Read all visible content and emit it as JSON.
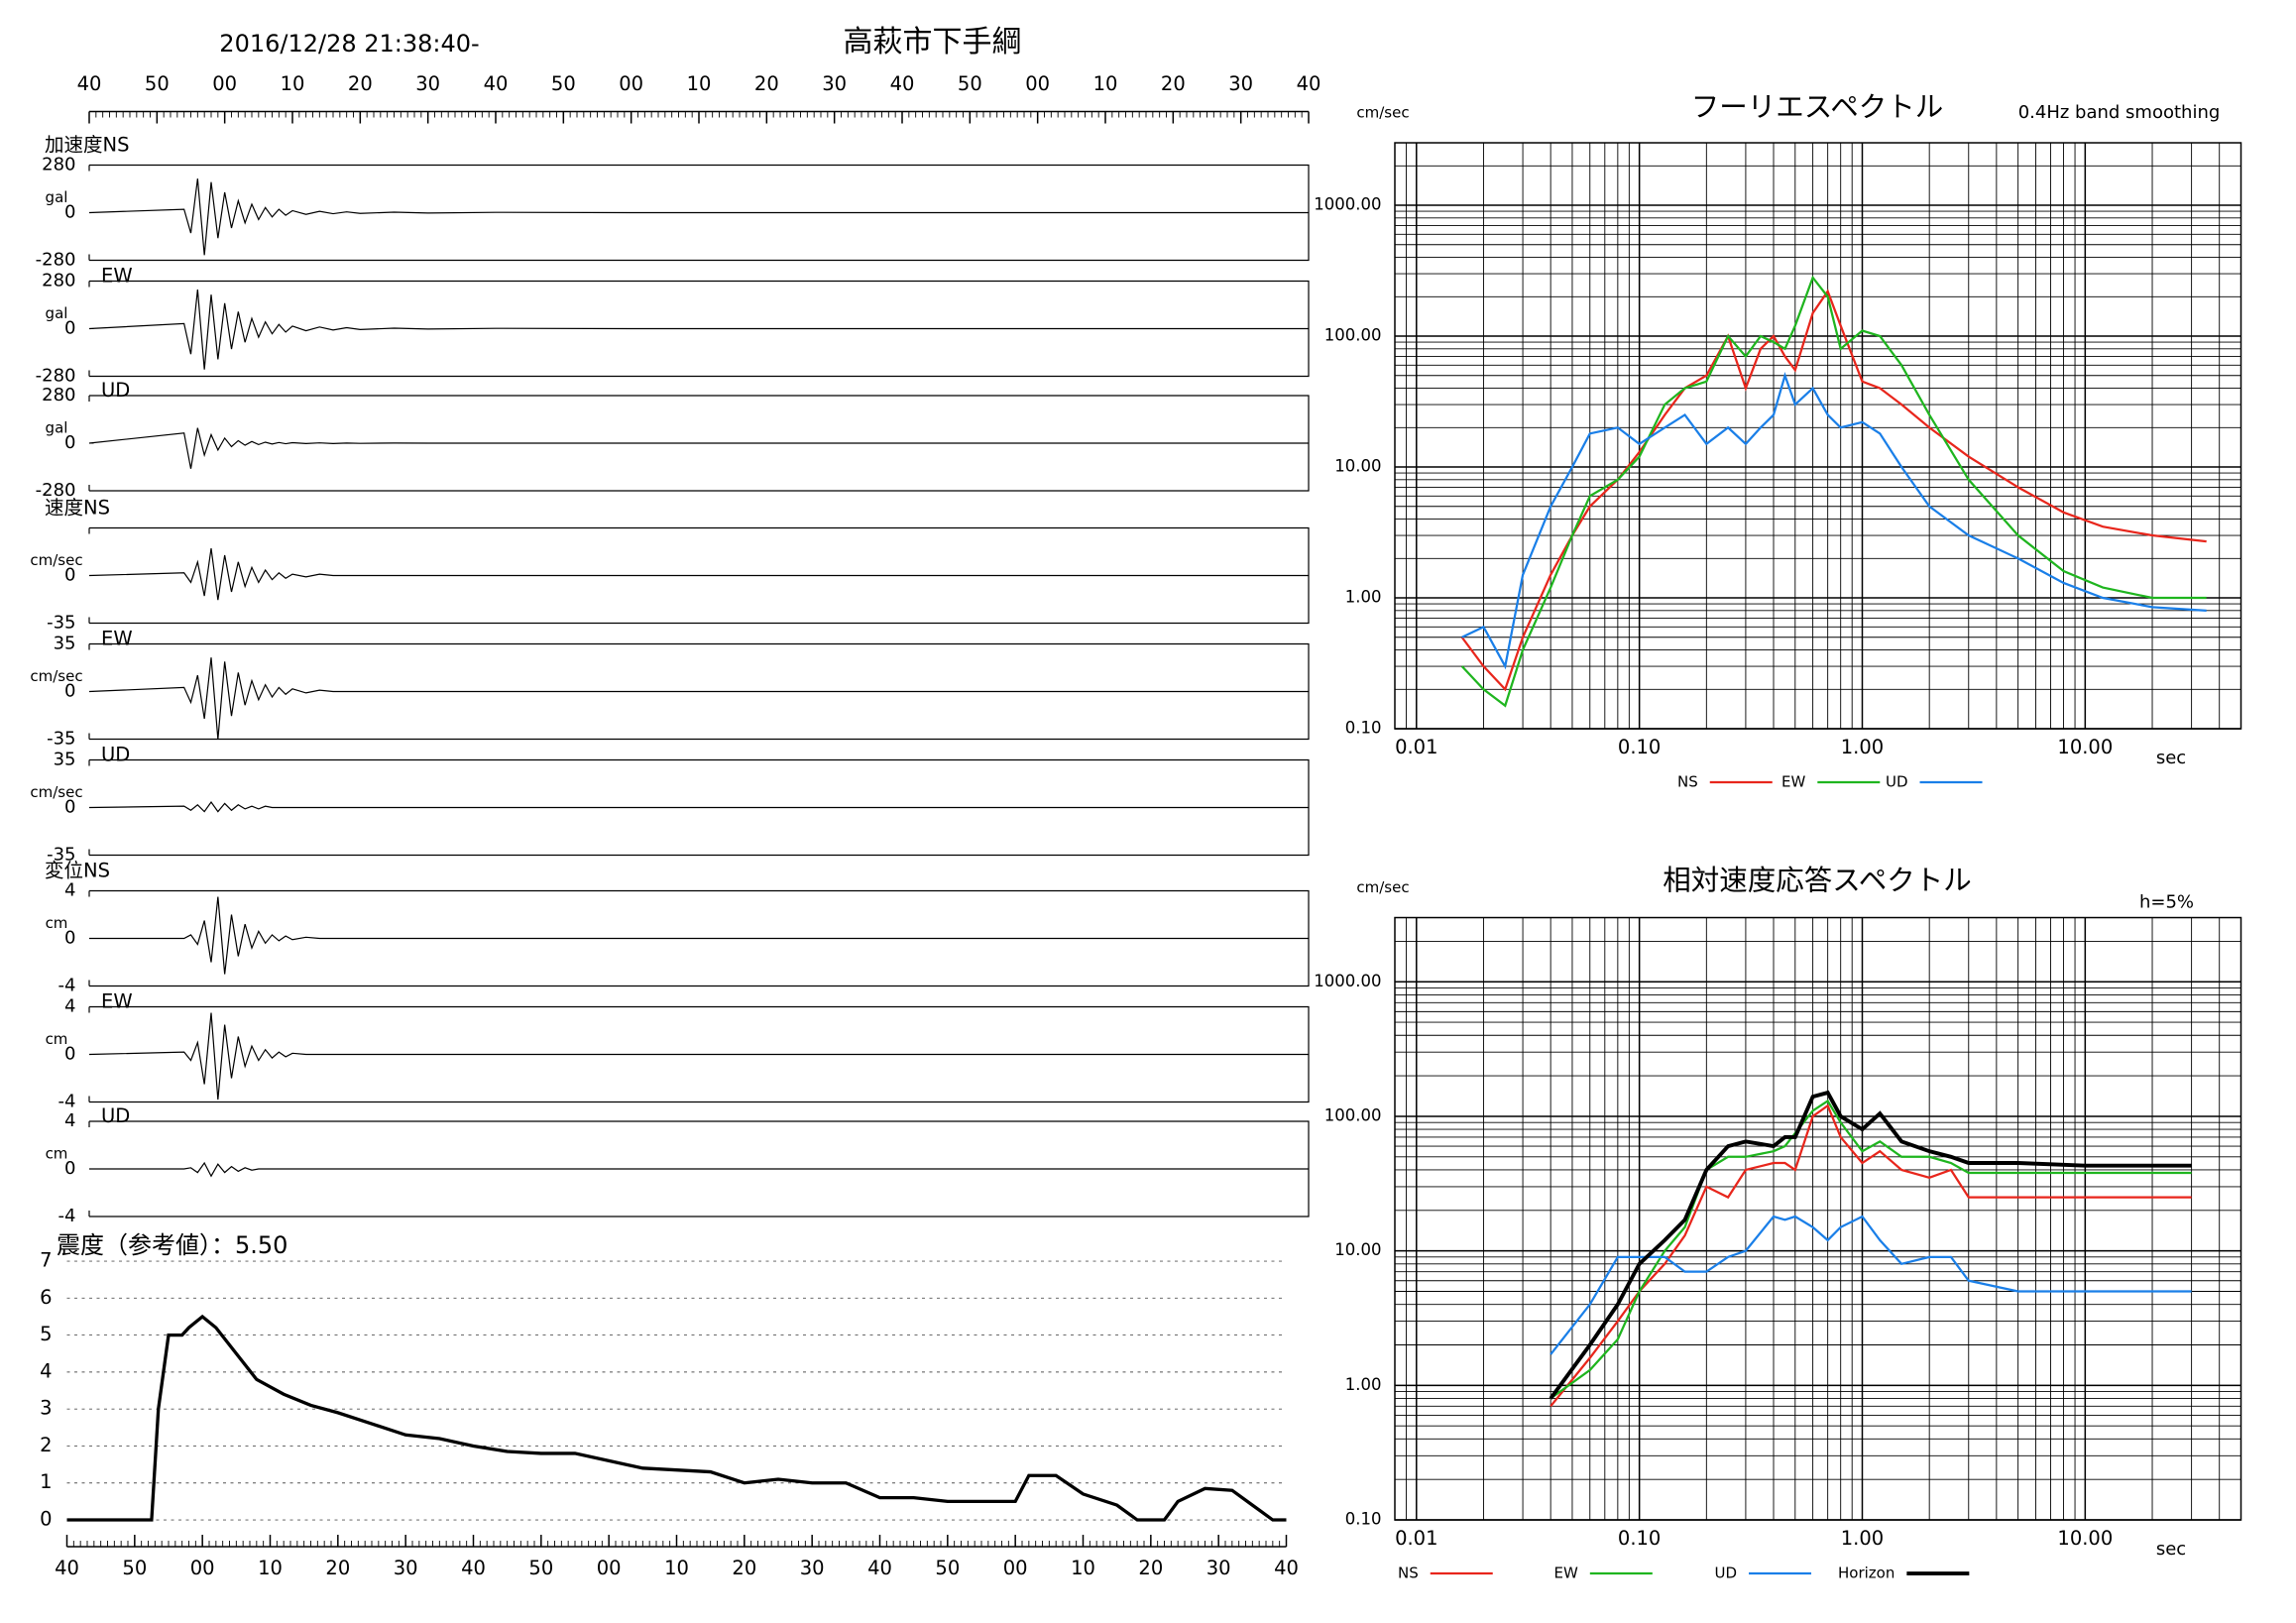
{
  "header": {
    "datetime": "2016/12/28 21:38:40-",
    "station": "高萩市下手綱"
  },
  "chart_data": [
    {
      "type": "waveform",
      "label": "加速度NS",
      "unit": "gal",
      "ylim": [
        -280,
        280
      ],
      "yticks": [
        -280,
        0,
        280
      ],
      "xlim": [
        0,
        180
      ],
      "xticks": [
        {
          "value": 0,
          "label": "40"
        },
        {
          "value": 10,
          "label": "50"
        },
        {
          "value": 20,
          "label": "00"
        },
        {
          "value": 30,
          "label": "10"
        },
        {
          "value": 40,
          "label": "20"
        },
        {
          "value": 50,
          "label": "30"
        },
        {
          "value": 60,
          "label": "40"
        },
        {
          "value": 70,
          "label": "50"
        },
        {
          "value": 80,
          "label": "00"
        },
        {
          "value": 90,
          "label": "10"
        },
        {
          "value": 100,
          "label": "20"
        },
        {
          "value": 110,
          "label": "30"
        },
        {
          "value": 120,
          "label": "40"
        },
        {
          "value": 130,
          "label": "50"
        },
        {
          "value": 140,
          "label": "00"
        },
        {
          "value": 150,
          "label": "10"
        },
        {
          "value": 160,
          "label": "20"
        },
        {
          "value": 170,
          "label": "30"
        },
        {
          "value": 180,
          "label": "40"
        }
      ],
      "x": [
        0,
        14,
        15,
        16,
        17,
        18,
        19,
        20,
        21,
        22,
        23,
        24,
        25,
        26,
        27,
        28,
        29,
        30,
        32,
        34,
        36,
        38,
        40,
        45,
        50,
        60,
        80,
        120,
        180
      ],
      "values": [
        0,
        20,
        -120,
        200,
        -250,
        180,
        -150,
        120,
        -90,
        70,
        -60,
        50,
        -40,
        30,
        -25,
        20,
        -15,
        12,
        -10,
        8,
        -6,
        5,
        -4,
        3,
        -2,
        2,
        0,
        0,
        0
      ]
    },
    {
      "type": "waveform",
      "label": "EW",
      "unit": "gal",
      "ylim": [
        -280,
        280
      ],
      "yticks": [
        -280,
        0,
        280
      ],
      "xlim": [
        0,
        180
      ],
      "x": [
        0,
        14,
        15,
        16,
        17,
        18,
        19,
        20,
        21,
        22,
        23,
        24,
        25,
        26,
        27,
        28,
        29,
        30,
        32,
        34,
        36,
        38,
        40,
        45,
        50,
        60,
        80,
        120,
        180
      ],
      "values": [
        0,
        30,
        -150,
        230,
        -240,
        200,
        -180,
        150,
        -120,
        100,
        -80,
        60,
        -50,
        40,
        -30,
        25,
        -20,
        15,
        -12,
        10,
        -8,
        6,
        -5,
        3,
        -2,
        2,
        0,
        0,
        0
      ]
    },
    {
      "type": "waveform",
      "label": "UD",
      "unit": "gal",
      "ylim": [
        -280,
        280
      ],
      "yticks": [
        -280,
        0,
        280
      ],
      "xlim": [
        0,
        180
      ],
      "x": [
        0,
        14,
        15,
        16,
        17,
        18,
        19,
        20,
        21,
        22,
        23,
        24,
        25,
        26,
        27,
        28,
        29,
        30,
        32,
        34,
        36,
        38,
        40,
        45,
        50,
        60,
        80,
        120,
        180
      ],
      "values": [
        0,
        60,
        -150,
        90,
        -70,
        50,
        -40,
        30,
        -20,
        15,
        -12,
        10,
        -8,
        6,
        -5,
        4,
        -3,
        3,
        -2,
        2,
        -2,
        1,
        -1,
        1,
        0,
        0,
        0,
        0,
        0
      ]
    },
    {
      "type": "waveform",
      "label": "速度NS",
      "unit": "cm/sec",
      "ylim": [
        -35,
        35
      ],
      "yticks": [
        -35,
        0
      ],
      "xlim": [
        0,
        180
      ],
      "x": [
        0,
        14,
        15,
        16,
        17,
        18,
        19,
        20,
        21,
        22,
        23,
        24,
        25,
        26,
        27,
        28,
        29,
        30,
        32,
        34,
        36,
        38,
        40,
        45,
        50,
        60,
        80,
        120,
        180
      ],
      "values": [
        0,
        2,
        -5,
        10,
        -15,
        20,
        -18,
        15,
        -12,
        10,
        -8,
        6,
        -5,
        4,
        -3,
        2,
        -2,
        1,
        -1,
        1,
        0,
        0,
        0,
        0,
        0,
        0,
        0,
        0,
        0
      ]
    },
    {
      "type": "waveform",
      "label": "EW",
      "unit": "cm/sec",
      "ylim": [
        -35,
        35
      ],
      "yticks": [
        -35,
        0,
        35
      ],
      "xlim": [
        0,
        180
      ],
      "x": [
        0,
        14,
        15,
        16,
        17,
        18,
        19,
        20,
        21,
        22,
        23,
        24,
        25,
        26,
        27,
        28,
        29,
        30,
        32,
        34,
        36,
        38,
        40,
        45,
        50,
        60,
        80,
        120,
        180
      ],
      "values": [
        0,
        3,
        -8,
        12,
        -20,
        25,
        -35,
        22,
        -18,
        14,
        -10,
        8,
        -6,
        5,
        -4,
        3,
        -2,
        2,
        -1,
        1,
        0,
        0,
        0,
        0,
        0,
        0,
        0,
        0,
        0
      ]
    },
    {
      "type": "waveform",
      "label": "UD",
      "unit": "cm/sec",
      "ylim": [
        -35,
        35
      ],
      "yticks": [
        -35,
        0,
        35
      ],
      "xlim": [
        0,
        180
      ],
      "x": [
        0,
        14,
        15,
        16,
        17,
        18,
        19,
        20,
        21,
        22,
        23,
        24,
        25,
        26,
        27,
        28,
        29,
        30,
        32,
        34,
        36,
        38,
        40,
        45,
        50,
        60,
        80,
        120,
        180
      ],
      "values": [
        0,
        1,
        -2,
        2,
        -3,
        4,
        -3,
        3,
        -2,
        2,
        -1,
        1,
        -1,
        1,
        0,
        0,
        0,
        0,
        0,
        0,
        0,
        0,
        0,
        0,
        0,
        0,
        0,
        0,
        0
      ]
    },
    {
      "type": "waveform",
      "label": "変位NS",
      "unit": "cm",
      "ylim": [
        -4,
        4
      ],
      "yticks": [
        -4,
        0,
        4
      ],
      "xlim": [
        0,
        180
      ],
      "x": [
        0,
        14,
        15,
        16,
        17,
        18,
        19,
        20,
        21,
        22,
        23,
        24,
        25,
        26,
        27,
        28,
        29,
        30,
        32,
        34,
        36,
        38,
        40,
        45,
        50,
        60,
        80,
        120,
        180
      ],
      "values": [
        0,
        0,
        0.3,
        -0.5,
        1.5,
        -2,
        3.5,
        -3,
        2,
        -1.5,
        1.2,
        -0.8,
        0.6,
        -0.4,
        0.3,
        -0.2,
        0.2,
        -0.1,
        0.1,
        0,
        0,
        0,
        0,
        0,
        0,
        0,
        0,
        0,
        0
      ]
    },
    {
      "type": "waveform",
      "label": "EW",
      "unit": "cm",
      "ylim": [
        -4,
        4
      ],
      "yticks": [
        -4,
        0,
        4
      ],
      "xlim": [
        0,
        180
      ],
      "x": [
        0,
        14,
        15,
        16,
        17,
        18,
        19,
        20,
        21,
        22,
        23,
        24,
        25,
        26,
        27,
        28,
        29,
        30,
        32,
        34,
        36,
        38,
        40,
        45,
        50,
        60,
        80,
        120,
        180
      ],
      "values": [
        0,
        0.2,
        -0.5,
        1,
        -2.5,
        3.5,
        -3.8,
        2.5,
        -2,
        1.5,
        -1,
        0.7,
        -0.5,
        0.4,
        -0.3,
        0.2,
        -0.2,
        0.1,
        0,
        0,
        0,
        0,
        0,
        0,
        0,
        0,
        0,
        0,
        0
      ]
    },
    {
      "type": "waveform",
      "label": "UD",
      "unit": "cm",
      "ylim": [
        -4,
        4
      ],
      "yticks": [
        -4,
        0,
        4
      ],
      "xlim": [
        0,
        180
      ],
      "x": [
        0,
        14,
        15,
        16,
        17,
        18,
        19,
        20,
        21,
        22,
        23,
        24,
        25,
        26,
        27,
        28,
        29,
        30,
        32,
        34,
        36,
        38,
        40,
        45,
        50,
        60,
        80,
        120,
        180
      ],
      "values": [
        0,
        0,
        0.1,
        -0.3,
        0.5,
        -0.6,
        0.4,
        -0.3,
        0.2,
        -0.2,
        0.1,
        -0.1,
        0,
        0,
        0,
        0,
        0,
        0,
        0,
        0,
        0,
        0,
        0,
        0,
        0,
        0,
        0,
        0,
        0
      ]
    },
    {
      "type": "line",
      "title": "震度（参考値）：5.50",
      "color": "#000000",
      "grid": true,
      "ylim": [
        0,
        7
      ],
      "yticks": [
        0,
        1,
        2,
        3,
        4,
        5,
        6,
        7
      ],
      "xlim": [
        0,
        180
      ],
      "xticks": [
        {
          "value": 0,
          "label": "40"
        },
        {
          "value": 10,
          "label": "50"
        },
        {
          "value": 20,
          "label": "00"
        },
        {
          "value": 30,
          "label": "10"
        },
        {
          "value": 40,
          "label": "20"
        },
        {
          "value": 50,
          "label": "30"
        },
        {
          "value": 60,
          "label": "40"
        },
        {
          "value": 70,
          "label": "50"
        },
        {
          "value": 80,
          "label": "00"
        },
        {
          "value": 90,
          "label": "10"
        },
        {
          "value": 100,
          "label": "20"
        },
        {
          "value": 110,
          "label": "30"
        },
        {
          "value": 120,
          "label": "40"
        },
        {
          "value": 130,
          "label": "50"
        },
        {
          "value": 140,
          "label": "00"
        },
        {
          "value": 150,
          "label": "10"
        },
        {
          "value": 160,
          "label": "20"
        },
        {
          "value": 170,
          "label": "30"
        },
        {
          "value": 180,
          "label": "40"
        }
      ],
      "x": [
        0,
        12.5,
        13.5,
        15,
        17,
        18,
        20,
        22,
        25,
        28,
        32,
        36,
        40,
        45,
        50,
        55,
        60,
        65,
        70,
        75,
        80,
        85,
        90,
        95,
        100,
        105,
        110,
        115,
        120,
        125,
        130,
        135,
        140,
        142,
        146,
        150,
        155,
        158,
        162,
        164,
        168,
        172,
        175,
        178,
        180
      ],
      "values": [
        0,
        0,
        3,
        5,
        5,
        5.2,
        5.5,
        5.2,
        4.5,
        3.8,
        3.4,
        3.1,
        2.9,
        2.6,
        2.3,
        2.2,
        2.0,
        1.85,
        1.8,
        1.8,
        1.6,
        1.4,
        1.35,
        1.3,
        1.0,
        1.1,
        1.0,
        1.0,
        0.6,
        0.6,
        0.5,
        0.5,
        0.5,
        1.2,
        1.2,
        0.7,
        0.4,
        0,
        0,
        0.5,
        0.85,
        0.8,
        0.4,
        0,
        0
      ]
    },
    {
      "type": "loglog",
      "title": "フーリエスペクトル",
      "subtitle": "0.4Hz band smoothing",
      "y_unit": "cm/sec",
      "x_unit": "sec",
      "grid": true,
      "xlim": [
        0.008,
        50
      ],
      "ylim": [
        0.1,
        3000
      ],
      "xticks": [
        {
          "value": 0.01,
          "label": "0.01"
        },
        {
          "value": 0.1,
          "label": "0.10"
        },
        {
          "value": 1,
          "label": "1.00"
        },
        {
          "value": 10,
          "label": "10.00"
        }
      ],
      "yticks": [
        {
          "value": 0.1,
          "label": "0.10"
        },
        {
          "value": 1,
          "label": "1.00"
        },
        {
          "value": 10,
          "label": "10.00"
        },
        {
          "value": 100,
          "label": "100.00"
        },
        {
          "value": 1000,
          "label": "1000.00"
        }
      ],
      "x": [
        0.016,
        0.02,
        0.025,
        0.03,
        0.04,
        0.05,
        0.06,
        0.08,
        0.1,
        0.13,
        0.16,
        0.2,
        0.25,
        0.3,
        0.35,
        0.4,
        0.45,
        0.5,
        0.6,
        0.7,
        0.8,
        1.0,
        1.2,
        1.5,
        2,
        3,
        5,
        8,
        12,
        20,
        35
      ],
      "series": [
        {
          "name": "NS",
          "color": "#e8261c",
          "values": [
            0.5,
            0.3,
            0.2,
            0.5,
            1.5,
            3,
            5,
            8,
            13,
            25,
            40,
            50,
            100,
            40,
            80,
            100,
            70,
            55,
            150,
            220,
            120,
            45,
            40,
            30,
            20,
            12,
            7,
            4.5,
            3.5,
            3,
            2.7
          ]
        },
        {
          "name": "EW",
          "color": "#1fb51f",
          "values": [
            0.3,
            0.2,
            0.15,
            0.4,
            1.2,
            3,
            6,
            8,
            12,
            30,
            40,
            45,
            100,
            70,
            100,
            90,
            80,
            120,
            280,
            200,
            80,
            110,
            100,
            60,
            25,
            8,
            3,
            1.6,
            1.2,
            1.0,
            1.0
          ]
        },
        {
          "name": "UD",
          "color": "#1a7fe8",
          "values": [
            0.5,
            0.6,
            0.3,
            1.5,
            5,
            10,
            18,
            20,
            15,
            20,
            25,
            15,
            20,
            15,
            20,
            25,
            50,
            30,
            40,
            25,
            20,
            22,
            18,
            10,
            5,
            3,
            2,
            1.3,
            1,
            0.85,
            0.8
          ]
        }
      ]
    },
    {
      "type": "loglog",
      "title": "相対速度応答スペクトル",
      "subtitle": "h=5%",
      "y_unit": "cm/sec",
      "x_unit": "sec",
      "grid": true,
      "xlim": [
        0.008,
        50
      ],
      "ylim": [
        0.1,
        3000
      ],
      "xticks": [
        {
          "value": 0.01,
          "label": "0.01"
        },
        {
          "value": 0.1,
          "label": "0.10"
        },
        {
          "value": 1,
          "label": "1.00"
        },
        {
          "value": 10,
          "label": "10.00"
        }
      ],
      "yticks": [
        {
          "value": 0.1,
          "label": "0.10"
        },
        {
          "value": 1,
          "label": "1.00"
        },
        {
          "value": 10,
          "label": "10.00"
        },
        {
          "value": 100,
          "label": "100.00"
        },
        {
          "value": 1000,
          "label": "1000.00"
        }
      ],
      "x": [
        0.04,
        0.06,
        0.08,
        0.1,
        0.13,
        0.16,
        0.2,
        0.25,
        0.3,
        0.4,
        0.45,
        0.5,
        0.6,
        0.7,
        0.8,
        1.0,
        1.2,
        1.5,
        2,
        2.5,
        3,
        5,
        10,
        30
      ],
      "series": [
        {
          "name": "NS",
          "color": "#e8261c",
          "values": [
            0.7,
            1.6,
            3,
            5,
            8,
            13,
            30,
            25,
            40,
            45,
            45,
            40,
            100,
            120,
            70,
            45,
            55,
            40,
            35,
            40,
            25,
            25,
            25,
            25
          ]
        },
        {
          "name": "EW",
          "color": "#1fb51f",
          "values": [
            0.8,
            1.3,
            2.2,
            5,
            10,
            15,
            40,
            50,
            50,
            55,
            60,
            75,
            110,
            130,
            90,
            55,
            65,
            50,
            50,
            45,
            38,
            38,
            38,
            38
          ]
        },
        {
          "name": "UD",
          "color": "#1a7fe8",
          "values": [
            1.7,
            4,
            9,
            9,
            9,
            7,
            7,
            9,
            10,
            18,
            17,
            18,
            15,
            12,
            15,
            18,
            12,
            8,
            9,
            9,
            6,
            5,
            5,
            5
          ]
        },
        {
          "name": "Horizon",
          "color": "#000000",
          "values": [
            0.8,
            2,
            4,
            8,
            12,
            17,
            40,
            60,
            65,
            60,
            70,
            70,
            140,
            150,
            100,
            80,
            105,
            65,
            55,
            50,
            45,
            45,
            43,
            43
          ]
        }
      ]
    }
  ]
}
